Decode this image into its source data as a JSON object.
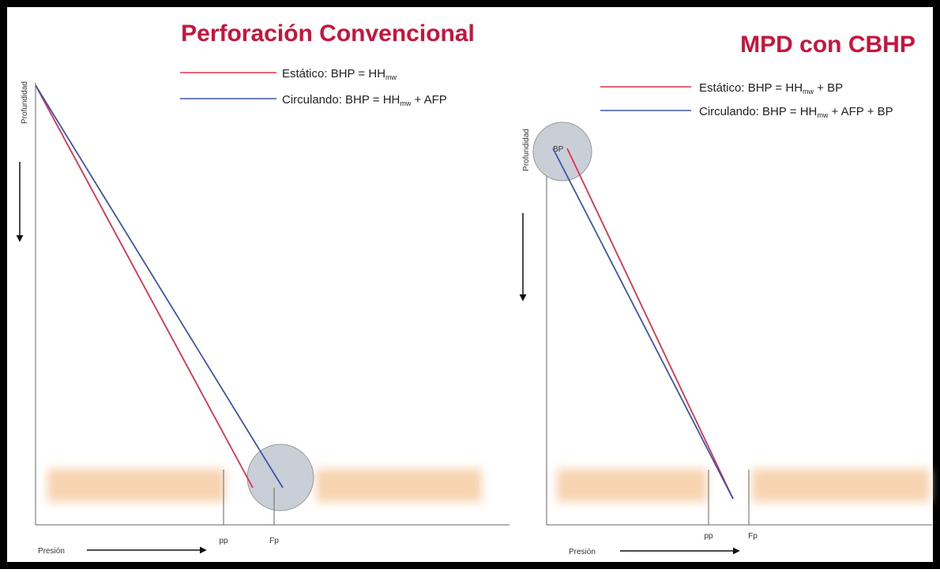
{
  "left": {
    "title": "Perforación Convencional",
    "legend": [
      {
        "parts": [
          "Estático: BHP = HH",
          "mw"
        ]
      },
      {
        "parts": [
          "Circulando: BHP = HH",
          "mw",
          " + AFP"
        ]
      }
    ],
    "y_axis_label": "Profundidad",
    "x_axis_label": "Presión",
    "markers": [
      "pp",
      "Fp"
    ]
  },
  "right": {
    "title": "MPD con CBHP",
    "legend": [
      {
        "parts": [
          "Estático: BHP = HH",
          "mw",
          " + BP"
        ]
      },
      {
        "parts": [
          "Circulando: BHP = HH",
          "mw",
          " + AFP + BP"
        ]
      }
    ],
    "y_axis_label": "Profundidad",
    "x_axis_label": "Presión",
    "markers": [
      "pp",
      "Fp"
    ],
    "circle_label": "BP"
  }
}
